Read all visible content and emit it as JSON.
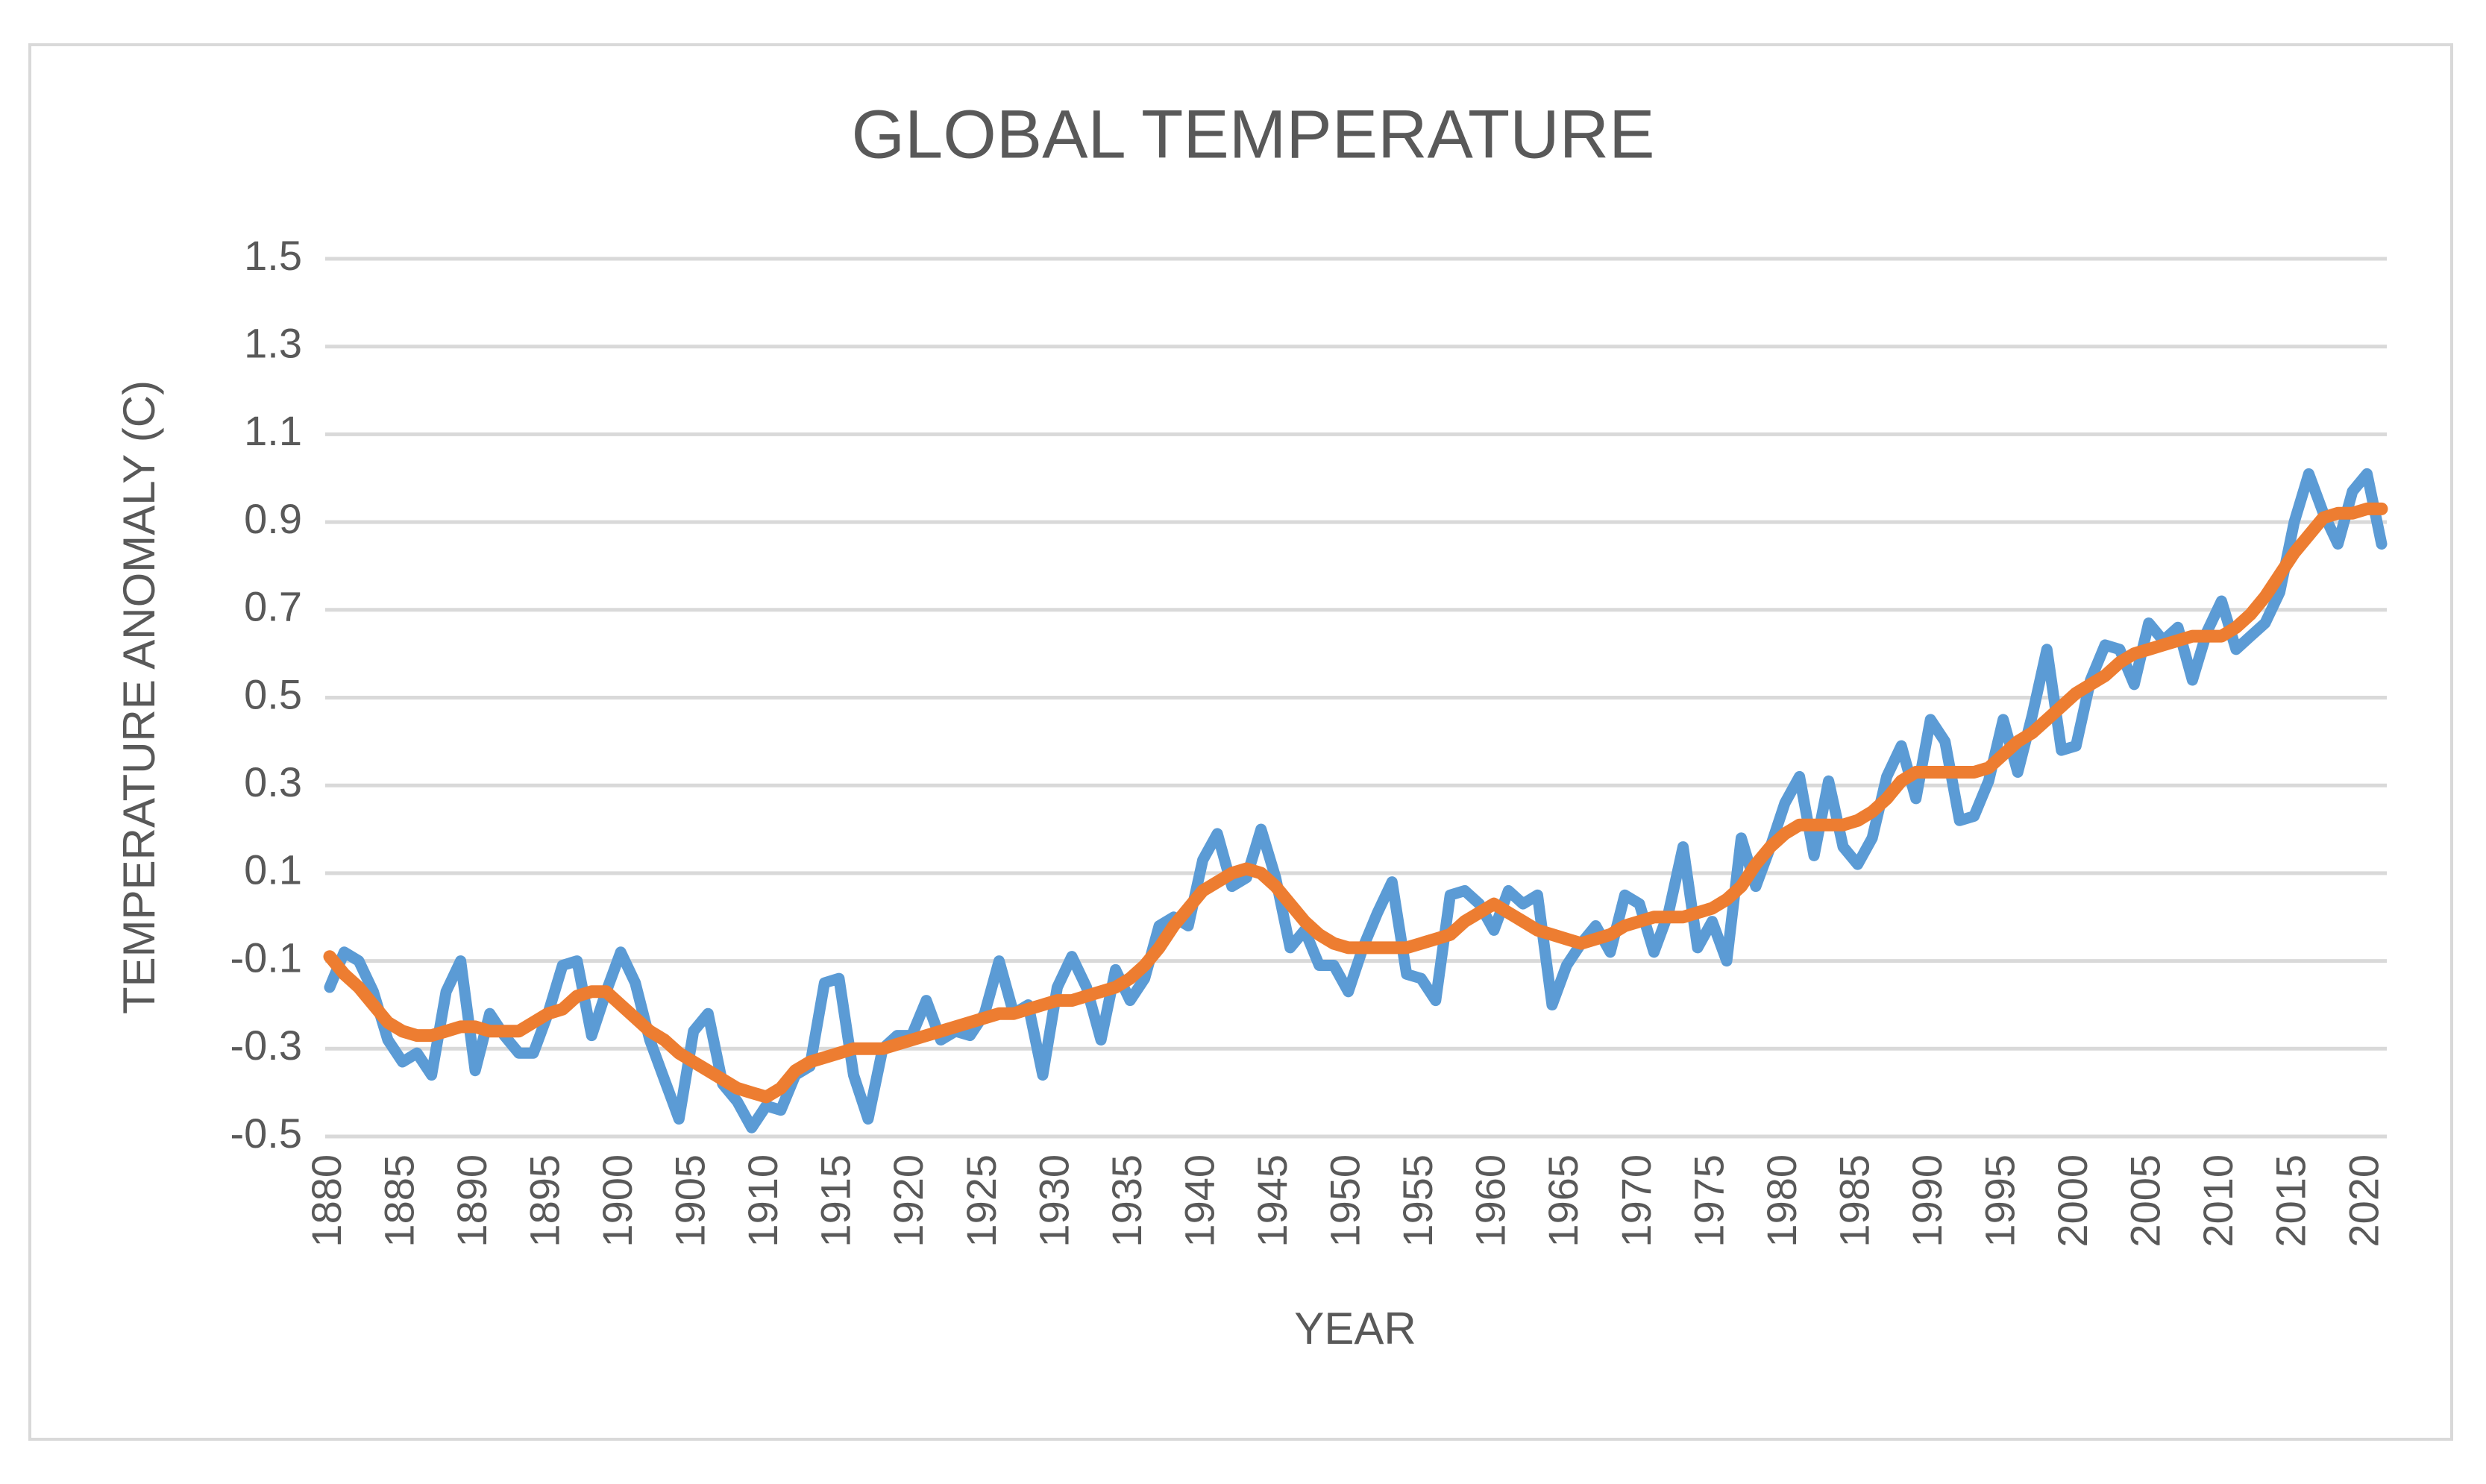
{
  "chart_data": {
    "type": "line",
    "title": "GLOBAL TEMPERATURE",
    "x_label": "YEAR",
    "y_label": "TEMPERATURE ANOMALY (C)",
    "x": [
      1880,
      1881,
      1882,
      1883,
      1884,
      1885,
      1886,
      1887,
      1888,
      1889,
      1890,
      1891,
      1892,
      1893,
      1894,
      1895,
      1896,
      1897,
      1898,
      1899,
      1900,
      1901,
      1902,
      1903,
      1904,
      1905,
      1906,
      1907,
      1908,
      1909,
      1910,
      1911,
      1912,
      1913,
      1914,
      1915,
      1916,
      1917,
      1918,
      1919,
      1920,
      1921,
      1922,
      1923,
      1924,
      1925,
      1926,
      1927,
      1928,
      1929,
      1930,
      1931,
      1932,
      1933,
      1934,
      1935,
      1936,
      1937,
      1938,
      1939,
      1940,
      1941,
      1942,
      1943,
      1944,
      1945,
      1946,
      1947,
      1948,
      1949,
      1950,
      1951,
      1952,
      1953,
      1954,
      1955,
      1956,
      1957,
      1958,
      1959,
      1960,
      1961,
      1962,
      1963,
      1964,
      1965,
      1966,
      1967,
      1968,
      1969,
      1970,
      1971,
      1972,
      1973,
      1974,
      1975,
      1976,
      1977,
      1978,
      1979,
      1980,
      1981,
      1982,
      1983,
      1984,
      1985,
      1986,
      1987,
      1988,
      1989,
      1990,
      1991,
      1992,
      1993,
      1994,
      1995,
      1996,
      1997,
      1998,
      1999,
      2000,
      2001,
      2002,
      2003,
      2004,
      2005,
      2006,
      2007,
      2008,
      2009,
      2010,
      2011,
      2012,
      2013,
      2014,
      2015,
      2016,
      2017,
      2018,
      2019,
      2020,
      2021
    ],
    "series": [
      {
        "color": "#5b9bd5",
        "values": [
          -0.16,
          -0.08,
          -0.1,
          -0.17,
          -0.28,
          -0.33,
          -0.31,
          -0.36,
          -0.17,
          -0.1,
          -0.35,
          -0.22,
          -0.27,
          -0.31,
          -0.31,
          -0.22,
          -0.11,
          -0.1,
          -0.27,
          -0.17,
          -0.08,
          -0.15,
          -0.28,
          -0.37,
          -0.46,
          -0.26,
          -0.22,
          -0.38,
          -0.42,
          -0.48,
          -0.43,
          -0.44,
          -0.36,
          -0.34,
          -0.15,
          -0.14,
          -0.36,
          -0.46,
          -0.3,
          -0.27,
          -0.27,
          -0.19,
          -0.28,
          -0.26,
          -0.27,
          -0.22,
          -0.1,
          -0.22,
          -0.2,
          -0.36,
          -0.16,
          -0.09,
          -0.16,
          -0.28,
          -0.12,
          -0.19,
          -0.14,
          -0.02,
          0.0,
          -0.02,
          0.13,
          0.19,
          0.07,
          0.09,
          0.2,
          0.09,
          -0.07,
          -0.03,
          -0.11,
          -0.11,
          -0.17,
          -0.07,
          0.01,
          0.08,
          -0.13,
          -0.14,
          -0.19,
          0.05,
          0.06,
          0.03,
          -0.03,
          0.06,
          0.03,
          0.05,
          -0.2,
          -0.11,
          -0.06,
          -0.02,
          -0.08,
          0.05,
          0.03,
          -0.08,
          0.01,
          0.16,
          -0.07,
          -0.01,
          -0.1,
          0.18,
          0.07,
          0.16,
          0.26,
          0.32,
          0.14,
          0.31,
          0.16,
          0.12,
          0.18,
          0.32,
          0.39,
          0.27,
          0.45,
          0.4,
          0.22,
          0.23,
          0.31,
          0.45,
          0.33,
          0.46,
          0.61,
          0.38,
          0.39,
          0.54,
          0.62,
          0.61,
          0.53,
          0.67,
          0.63,
          0.66,
          0.54,
          0.65,
          0.72,
          0.61,
          0.64,
          0.67,
          0.74,
          0.9,
          1.01,
          0.92,
          0.85,
          0.97,
          1.01,
          0.85
        ]
      },
      {
        "color": "#ed7d31",
        "values": [
          -0.09,
          -0.13,
          -0.16,
          -0.2,
          -0.24,
          -0.26,
          -0.27,
          -0.27,
          -0.26,
          -0.25,
          -0.25,
          -0.26,
          -0.26,
          -0.26,
          -0.24,
          -0.22,
          -0.21,
          -0.18,
          -0.17,
          -0.17,
          -0.2,
          -0.23,
          -0.26,
          -0.28,
          -0.31,
          -0.33,
          -0.35,
          -0.37,
          -0.39,
          -0.4,
          -0.41,
          -0.39,
          -0.35,
          -0.33,
          -0.32,
          -0.31,
          -0.3,
          -0.3,
          -0.3,
          -0.29,
          -0.28,
          -0.27,
          -0.26,
          -0.25,
          -0.24,
          -0.23,
          -0.22,
          -0.22,
          -0.21,
          -0.2,
          -0.19,
          -0.19,
          -0.18,
          -0.17,
          -0.16,
          -0.14,
          -0.11,
          -0.07,
          -0.02,
          0.02,
          0.06,
          0.08,
          0.1,
          0.11,
          0.1,
          0.07,
          0.03,
          -0.01,
          -0.04,
          -0.06,
          -0.07,
          -0.07,
          -0.07,
          -0.07,
          -0.07,
          -0.06,
          -0.05,
          -0.04,
          -0.01,
          0.01,
          0.03,
          0.01,
          -0.01,
          -0.03,
          -0.04,
          -0.05,
          -0.06,
          -0.05,
          -0.04,
          -0.02,
          -0.01,
          0.0,
          0.0,
          0.0,
          0.01,
          0.02,
          0.04,
          0.07,
          0.12,
          0.16,
          0.19,
          0.21,
          0.21,
          0.21,
          0.21,
          0.22,
          0.24,
          0.27,
          0.31,
          0.33,
          0.33,
          0.33,
          0.33,
          0.33,
          0.34,
          0.37,
          0.4,
          0.42,
          0.45,
          0.48,
          0.51,
          0.53,
          0.55,
          0.58,
          0.6,
          0.61,
          0.62,
          0.63,
          0.64,
          0.64,
          0.64,
          0.66,
          0.69,
          0.73,
          0.78,
          0.83,
          0.87,
          0.91,
          0.92,
          0.92,
          0.93,
          0.93
        ]
      }
    ],
    "xlim": [
      1880,
      2021
    ],
    "xticks": [
      1880,
      1885,
      1890,
      1895,
      1900,
      1905,
      1910,
      1915,
      1920,
      1925,
      1930,
      1935,
      1940,
      1945,
      1950,
      1955,
      1960,
      1965,
      1970,
      1975,
      1980,
      1985,
      1990,
      1995,
      2000,
      2005,
      2010,
      2015,
      2020
    ],
    "ylim": [
      -0.5,
      1.5
    ],
    "yticks": [
      -0.5,
      -0.3,
      -0.1,
      0.1,
      0.3,
      0.5,
      0.7,
      0.9,
      1.1,
      1.3,
      1.5
    ],
    "grid": true
  }
}
